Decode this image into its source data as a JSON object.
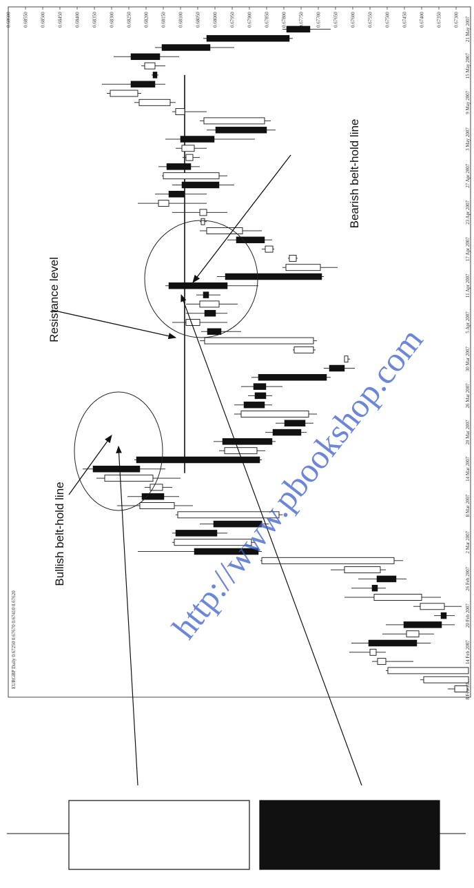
{
  "chart_data": {
    "type": "candlestick",
    "subtitle": "EURGBP Daily 0.67250 0.67670 0.67410 0.67620",
    "annotations": [
      {
        "text": "Resistance level"
      },
      {
        "text": "Bearish belt-hold line"
      },
      {
        "text": "Bullish belt-hold line"
      }
    ],
    "watermark": "http://www.pbookshop.com",
    "resistance": 0.68088,
    "up_color": "#ffffff",
    "down_color": "#111111",
    "xlim": [
      0.686,
      0.67264
    ],
    "xticks": [
      {
        "value": 0.686,
        "label": "0.68600"
      },
      {
        "value": 0.6855,
        "label": "0.68550"
      },
      {
        "value": 0.685,
        "label": "0.68500"
      },
      {
        "value": 0.6845,
        "label": "0.68450"
      },
      {
        "value": 0.684,
        "label": "0.68400"
      },
      {
        "value": 0.6835,
        "label": "0.68350"
      },
      {
        "value": 0.683,
        "label": "0.68300"
      },
      {
        "value": 0.6825,
        "label": "0.68250"
      },
      {
        "value": 0.682,
        "label": "0.68200"
      },
      {
        "value": 0.6815,
        "label": "0.68150"
      },
      {
        "value": 0.681,
        "label": "0.68100"
      },
      {
        "value": 0.6805,
        "label": "0.68050"
      },
      {
        "value": 0.68,
        "label": "0.68000"
      },
      {
        "value": 0.6795,
        "label": "0.67950"
      },
      {
        "value": 0.679,
        "label": "0.67900"
      },
      {
        "value": 0.6785,
        "label": "0.67850"
      },
      {
        "value": 0.678,
        "label": "0.67800"
      },
      {
        "value": 0.6775,
        "label": "0.67750"
      },
      {
        "value": 0.677,
        "label": "0.67700"
      },
      {
        "value": 0.6765,
        "label": "0.67650"
      },
      {
        "value": 0.676,
        "label": "0.67600"
      },
      {
        "value": 0.6755,
        "label": "0.67550"
      },
      {
        "value": 0.675,
        "label": "0.67500"
      },
      {
        "value": 0.6745,
        "label": "0.67450"
      },
      {
        "value": 0.674,
        "label": "0.67400"
      },
      {
        "value": 0.6735,
        "label": "0.67350"
      },
      {
        "value": 0.673,
        "label": "0.67300"
      }
    ],
    "categories": [
      "8 Feb 2007",
      null,
      null,
      null,
      "14 Feb 2007",
      null,
      null,
      null,
      "20 Feb 2007",
      null,
      null,
      null,
      "26 Feb 2007",
      null,
      null,
      null,
      "2 Mar 2007",
      null,
      null,
      null,
      "8 Mar 2007",
      null,
      null,
      null,
      "14 Mar 2007",
      null,
      null,
      null,
      "20 Mar 2007",
      null,
      null,
      null,
      "26 Mar 2007",
      null,
      null,
      null,
      "30 Mar 2007",
      null,
      null,
      null,
      "5 Apr 2007",
      null,
      null,
      null,
      "11 Apr 2007",
      null,
      null,
      null,
      "17 Apr 2007",
      null,
      null,
      null,
      "23 Apr 2007",
      null,
      null,
      null,
      "27 Apr 2007",
      null,
      null,
      null,
      "3 May 2007",
      null,
      null,
      null,
      "9 May 2007",
      null,
      null,
      null,
      "15 May 2007",
      null,
      null,
      null,
      "21 May 2007"
    ],
    "open": [
      0.67268,
      0.67264,
      0.67264,
      0.67504,
      0.67532,
      0.67554,
      0.67408,
      0.67452,
      0.67344,
      0.67334,
      0.674,
      0.67544,
      0.6753,
      0.6752,
      0.6748,
      0.6806,
      0.67894,
      0.68114,
      0.68004,
      0.67814,
      0.68118,
      0.68212,
      0.68152,
      0.6818,
      0.68354,
      0.68228,
      0.67878,
      0.67978,
      0.67832,
      0.67798,
      0.67728,
      0.67916,
      0.67884,
      0.67888,
      0.67874,
      0.67668,
      0.67614,
      0.67714,
      0.67714,
      0.68022,
      0.68044,
      0.6803,
      0.67988,
      0.68034,
      0.68134,
      0.6797,
      0.67694,
      0.67764,
      0.67832,
      0.67938,
      0.6792,
      0.6803,
      0.68024,
      0.68134,
      0.68134,
      0.68096,
      0.67988,
      0.6814,
      0.68064,
      0.6806,
      0.681,
      0.67998,
      0.67856,
      0.68088,
      0.6813,
      0.68224,
      0.68244,
      0.6818,
      0.68174,
      0.68244,
      0.68154,
      0.68024,
      0.67792
    ],
    "high": [
      0.67324,
      0.67404,
      0.67504,
      0.67544,
      0.6761,
      0.67604,
      0.67514,
      0.67504,
      0.67364,
      0.67424,
      0.67624,
      0.67604,
      0.67584,
      0.67664,
      0.67868,
      0.68224,
      0.68124,
      0.68124,
      0.68044,
      0.68114,
      0.68284,
      0.68254,
      0.68204,
      0.68344,
      0.68384,
      0.68234,
      0.67988,
      0.68004,
      0.67854,
      0.67824,
      0.67944,
      0.67944,
      0.67904,
      0.67924,
      0.67894,
      0.67684,
      0.67624,
      0.67774,
      0.68044,
      0.6804,
      0.68124,
      0.68084,
      0.68084,
      0.68054,
      0.68144,
      0.67994,
      0.67804,
      0.67788,
      0.67864,
      0.67964,
      0.68044,
      0.68044,
      0.68124,
      0.68224,
      0.68174,
      0.68124,
      0.68154,
      0.68164,
      0.68094,
      0.68114,
      0.68144,
      0.68024,
      0.68044,
      0.68124,
      0.68234,
      0.68314,
      0.68328,
      0.68184,
      0.68214,
      0.68294,
      0.68174,
      0.68034,
      0.67804
    ],
    "low": [
      0.67264,
      0.67264,
      0.67264,
      0.67424,
      0.67504,
      0.67374,
      0.67364,
      0.67304,
      0.67304,
      0.67284,
      0.67344,
      0.67504,
      0.67444,
      0.67504,
      0.67454,
      0.67864,
      0.67884,
      0.67964,
      0.67844,
      0.67804,
      0.68064,
      0.68104,
      0.68124,
      0.681,
      0.68144,
      0.67864,
      0.67854,
      0.67824,
      0.67734,
      0.67714,
      0.67704,
      0.67834,
      0.67834,
      0.67804,
      0.67664,
      0.67594,
      0.67608,
      0.67708,
      0.67704,
      0.67924,
      0.67964,
      0.67964,
      0.67934,
      0.67984,
      0.67874,
      0.67684,
      0.67644,
      0.6776,
      0.67828,
      0.67834,
      0.67864,
      0.68024,
      0.67964,
      0.68024,
      0.68024,
      0.67944,
      0.67964,
      0.68044,
      0.68044,
      0.68024,
      0.67884,
      0.67824,
      0.67838,
      0.68024,
      0.68114,
      0.68214,
      0.68144,
      0.68164,
      0.68144,
      0.68104,
      0.67944,
      0.67774,
      0.67664
    ],
    "close": [
      0.67304,
      0.67394,
      0.67498,
      0.67528,
      0.6755,
      0.67414,
      0.67444,
      0.67342,
      0.67328,
      0.67404,
      0.67538,
      0.67528,
      0.67474,
      0.67624,
      0.67864,
      0.67874,
      0.68118,
      0.67994,
      0.67864,
      0.68108,
      0.68218,
      0.68148,
      0.68188,
      0.6832,
      0.68218,
      0.6787,
      0.67972,
      0.67834,
      0.6775,
      0.67738,
      0.67924,
      0.67856,
      0.67852,
      0.67852,
      0.67676,
      0.67624,
      0.67624,
      0.6777,
      0.6803,
      0.67982,
      0.68084,
      0.67998,
      0.68044,
      0.68018,
      0.67964,
      0.6769,
      0.67794,
      0.67784,
      0.67854,
      0.67856,
      0.68024,
      0.6804,
      0.68044,
      0.68164,
      0.68088,
      0.67988,
      0.6815,
      0.6807,
      0.68084,
      0.68096,
      0.68002,
      0.6785,
      0.68032,
      0.68114,
      0.6822,
      0.68304,
      0.68174,
      0.68168,
      0.68204,
      0.6816,
      0.68014,
      0.67784,
      0.67724
    ]
  }
}
